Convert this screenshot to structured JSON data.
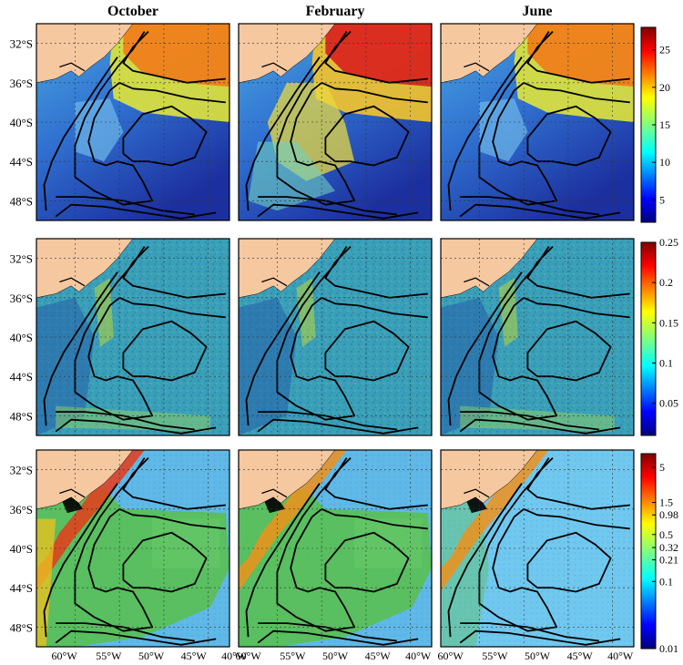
{
  "columns": [
    "October",
    "February",
    "June"
  ],
  "lat_labels": [
    "32°S",
    "36°S",
    "40°S",
    "44°S",
    "48°S"
  ],
  "lon_labels": [
    "60°W",
    "55°W",
    "50°W",
    "45°W",
    "40°W"
  ],
  "colorbars": [
    {
      "name": "row1",
      "ticks": [
        "25",
        "20",
        "15",
        "10",
        "5"
      ],
      "values": [
        25,
        20,
        15,
        10,
        5
      ],
      "range": [
        2,
        28
      ]
    },
    {
      "name": "row2",
      "ticks": [
        "0.25",
        "0.2",
        "0.15",
        "0.1",
        "0.05"
      ],
      "values": [
        0.25,
        0.2,
        0.15,
        0.1,
        0.05
      ],
      "range": [
        0.01,
        0.25
      ]
    },
    {
      "name": "row3",
      "ticks": [
        "5",
        "1.5",
        "0.98",
        "0.5",
        "0.32",
        "0.21",
        "0.1",
        "0.01"
      ],
      "values": [
        5,
        1.5,
        0.98,
        0.5,
        0.32,
        0.21,
        0.1,
        0.01
      ],
      "range": [
        0.01,
        8
      ],
      "scale": "log"
    }
  ],
  "colors": {
    "land": "#f5c8a0",
    "frame": "#000000",
    "grid": "#333333"
  }
}
